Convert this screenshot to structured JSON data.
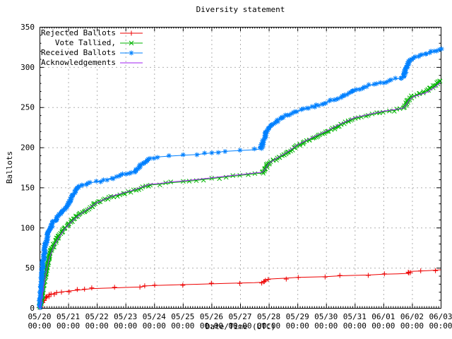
{
  "title": "Diversity statement",
  "chart_data": {
    "type": "line",
    "title": "Diversity statement",
    "xlabel": "Date/Time (UTC)",
    "ylabel": "Ballots",
    "x_tick_labels": [
      "05/20",
      "05/21",
      "05/22",
      "05/23",
      "05/24",
      "05/25",
      "05/26",
      "05/27",
      "05/28",
      "05/29",
      "05/30",
      "05/31",
      "06/01",
      "06/02",
      "06/03"
    ],
    "x_tick_sublabel": "00:00",
    "y_ticks": [
      0,
      50,
      100,
      150,
      200,
      250,
      300,
      350
    ],
    "ylim": [
      0,
      350
    ],
    "x_range_days": 14,
    "grid": true,
    "legend_position": "top-left",
    "background_color": "#ffffff",
    "grid_color": "#b0b0b0",
    "axis_color": "#000000",
    "series": [
      {
        "name": "Rejected Ballots",
        "color": "#ee0000",
        "marker": "plus",
        "points": [
          [
            0,
            0
          ],
          [
            0.04,
            3
          ],
          [
            0.08,
            7
          ],
          [
            0.15,
            11
          ],
          [
            0.25,
            14
          ],
          [
            0.4,
            17
          ],
          [
            0.6,
            19
          ],
          [
            0.8,
            20
          ],
          [
            1.0,
            21
          ],
          [
            1.3,
            22
          ],
          [
            1.6,
            23
          ],
          [
            1.8,
            24
          ],
          [
            2.2,
            24.5
          ],
          [
            2.6,
            25
          ],
          [
            3.0,
            25.5
          ],
          [
            3.5,
            26
          ],
          [
            3.75,
            27.5
          ],
          [
            4.0,
            28
          ],
          [
            4.5,
            28.5
          ],
          [
            5.0,
            29
          ],
          [
            5.5,
            29.5
          ],
          [
            6.0,
            30
          ],
          [
            6.5,
            30.5
          ],
          [
            7.0,
            31
          ],
          [
            7.5,
            31.5
          ],
          [
            7.78,
            32
          ],
          [
            7.88,
            35
          ],
          [
            8.0,
            36
          ],
          [
            8.3,
            36.5
          ],
          [
            8.6,
            37
          ],
          [
            9.0,
            38
          ],
          [
            9.5,
            38.5
          ],
          [
            10.0,
            39
          ],
          [
            10.5,
            40
          ],
          [
            11.0,
            40.5
          ],
          [
            11.5,
            41
          ],
          [
            12.0,
            42
          ],
          [
            12.5,
            42.5
          ],
          [
            12.85,
            43
          ],
          [
            12.95,
            45.5
          ],
          [
            13.3,
            46
          ],
          [
            13.6,
            46.5
          ],
          [
            14.0,
            47.5
          ]
        ]
      },
      {
        "name": "Vote Tallied,",
        "color": "#00b400",
        "marker": "cross",
        "points": [
          [
            0,
            0
          ],
          [
            0.08,
            14
          ],
          [
            0.15,
            30
          ],
          [
            0.25,
            50
          ],
          [
            0.35,
            65
          ],
          [
            0.5,
            79
          ],
          [
            0.7,
            91
          ],
          [
            0.85,
            98
          ],
          [
            1.0,
            104
          ],
          [
            1.2,
            111
          ],
          [
            1.4,
            117
          ],
          [
            1.6,
            121
          ],
          [
            1.8,
            126
          ],
          [
            2.0,
            131
          ],
          [
            2.5,
            138
          ],
          [
            3.0,
            143
          ],
          [
            3.3,
            146
          ],
          [
            3.6,
            150
          ],
          [
            3.85,
            153
          ],
          [
            4.2,
            154
          ],
          [
            4.6,
            156
          ],
          [
            5.0,
            157
          ],
          [
            5.5,
            159
          ],
          [
            6.0,
            161
          ],
          [
            6.5,
            163
          ],
          [
            7.0,
            165
          ],
          [
            7.5,
            167
          ],
          [
            7.78,
            168
          ],
          [
            7.88,
            174
          ],
          [
            8.0,
            181
          ],
          [
            8.3,
            186
          ],
          [
            8.6,
            192
          ],
          [
            9.0,
            202
          ],
          [
            9.5,
            211
          ],
          [
            10.0,
            219
          ],
          [
            10.5,
            228
          ],
          [
            11.0,
            236
          ],
          [
            11.5,
            240
          ],
          [
            12.0,
            244
          ],
          [
            12.4,
            246
          ],
          [
            12.7,
            249
          ],
          [
            12.8,
            254
          ],
          [
            12.9,
            261
          ],
          [
            13.05,
            264
          ],
          [
            13.3,
            267
          ],
          [
            13.5,
            270
          ],
          [
            13.8,
            277
          ],
          [
            14.0,
            283
          ]
        ]
      },
      {
        "name": "Received Ballots",
        "color": "#0080ff",
        "marker": "star",
        "points": [
          [
            0,
            0
          ],
          [
            0.06,
            25
          ],
          [
            0.12,
            55
          ],
          [
            0.2,
            78
          ],
          [
            0.3,
            93
          ],
          [
            0.45,
            105
          ],
          [
            0.6,
            112
          ],
          [
            0.8,
            120
          ],
          [
            1.0,
            130
          ],
          [
            1.15,
            140
          ],
          [
            1.3,
            149
          ],
          [
            1.5,
            153
          ],
          [
            1.8,
            156
          ],
          [
            2.0,
            157
          ],
          [
            2.5,
            161
          ],
          [
            3.0,
            167
          ],
          [
            3.3,
            170
          ],
          [
            3.6,
            180
          ],
          [
            3.85,
            186
          ],
          [
            4.1,
            188
          ],
          [
            4.5,
            189
          ],
          [
            5.0,
            190
          ],
          [
            5.5,
            191
          ],
          [
            6.0,
            193
          ],
          [
            6.5,
            195
          ],
          [
            7.0,
            196
          ],
          [
            7.5,
            197
          ],
          [
            7.72,
            198
          ],
          [
            7.8,
            207
          ],
          [
            7.9,
            218
          ],
          [
            8.0,
            224
          ],
          [
            8.2,
            231
          ],
          [
            8.5,
            238
          ],
          [
            9.0,
            245
          ],
          [
            9.5,
            250
          ],
          [
            10.0,
            256
          ],
          [
            10.5,
            262
          ],
          [
            11.0,
            271
          ],
          [
            11.4,
            276
          ],
          [
            12.0,
            281
          ],
          [
            12.4,
            285
          ],
          [
            12.6,
            286
          ],
          [
            12.7,
            288
          ],
          [
            12.8,
            298
          ],
          [
            12.9,
            307
          ],
          [
            13.05,
            311
          ],
          [
            13.3,
            314
          ],
          [
            13.6,
            318
          ],
          [
            14.0,
            323
          ]
        ]
      },
      {
        "name": "Acknowledgements",
        "color": "#a020f0",
        "marker": "none",
        "points": [
          [
            0,
            0
          ],
          [
            0.08,
            12
          ],
          [
            0.15,
            28
          ],
          [
            0.25,
            48
          ],
          [
            0.35,
            63
          ],
          [
            0.5,
            77
          ],
          [
            0.7,
            89
          ],
          [
            0.85,
            97
          ],
          [
            1.0,
            103
          ],
          [
            1.2,
            110
          ],
          [
            1.4,
            116
          ],
          [
            1.6,
            121
          ],
          [
            1.8,
            126
          ],
          [
            2.0,
            131
          ],
          [
            2.5,
            139
          ],
          [
            3.0,
            144
          ],
          [
            3.3,
            147
          ],
          [
            3.6,
            151
          ],
          [
            3.85,
            154
          ],
          [
            4.2,
            155
          ],
          [
            4.6,
            157
          ],
          [
            5.0,
            158
          ],
          [
            5.5,
            160
          ],
          [
            6.0,
            162
          ],
          [
            6.5,
            164
          ],
          [
            7.0,
            166
          ],
          [
            7.5,
            168
          ],
          [
            7.78,
            169
          ],
          [
            7.88,
            173
          ],
          [
            8.0,
            180
          ],
          [
            8.3,
            187
          ],
          [
            8.6,
            193
          ],
          [
            9.0,
            203
          ],
          [
            9.5,
            212
          ],
          [
            10.0,
            220
          ],
          [
            10.5,
            229
          ],
          [
            11.0,
            237
          ],
          [
            11.5,
            241
          ],
          [
            12.0,
            245
          ],
          [
            12.4,
            247
          ],
          [
            12.7,
            249
          ],
          [
            12.8,
            253
          ],
          [
            12.9,
            259
          ],
          [
            13.05,
            263
          ],
          [
            13.3,
            266
          ],
          [
            13.5,
            268
          ],
          [
            13.8,
            275
          ],
          [
            14.0,
            281
          ]
        ]
      }
    ]
  }
}
